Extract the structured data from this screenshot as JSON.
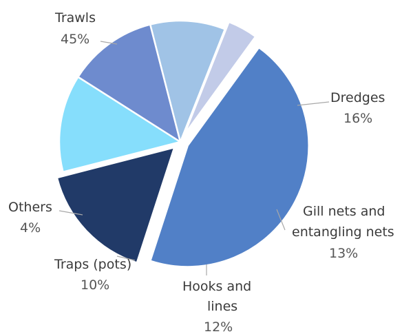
{
  "chart_data": {
    "type": "pie",
    "title": "",
    "unit": "%",
    "slices": [
      {
        "label": "Trawls",
        "value": 45,
        "display": "45%",
        "color": "#5180c7",
        "exploded": true
      },
      {
        "label": "Dredges",
        "value": 16,
        "display": "16%",
        "color": "#213a68",
        "exploded": true
      },
      {
        "label": "Gill nets and entangling nets",
        "label_lines": [
          "Gill nets and",
          "entangling nets"
        ],
        "value": 13,
        "display": "13%",
        "color": "#86defc",
        "exploded": false
      },
      {
        "label": "Hooks and lines",
        "label_lines": [
          "Hooks and",
          "lines"
        ],
        "value": 12,
        "display": "12%",
        "color": "#6e8bce",
        "exploded": false
      },
      {
        "label": "Traps (pots)",
        "value": 10,
        "display": "10%",
        "color": "#a0c3e6",
        "exploded": false
      },
      {
        "label": "Others",
        "value": 4,
        "display": "4%",
        "color": "#c2cbe8",
        "exploded": true
      }
    ]
  }
}
